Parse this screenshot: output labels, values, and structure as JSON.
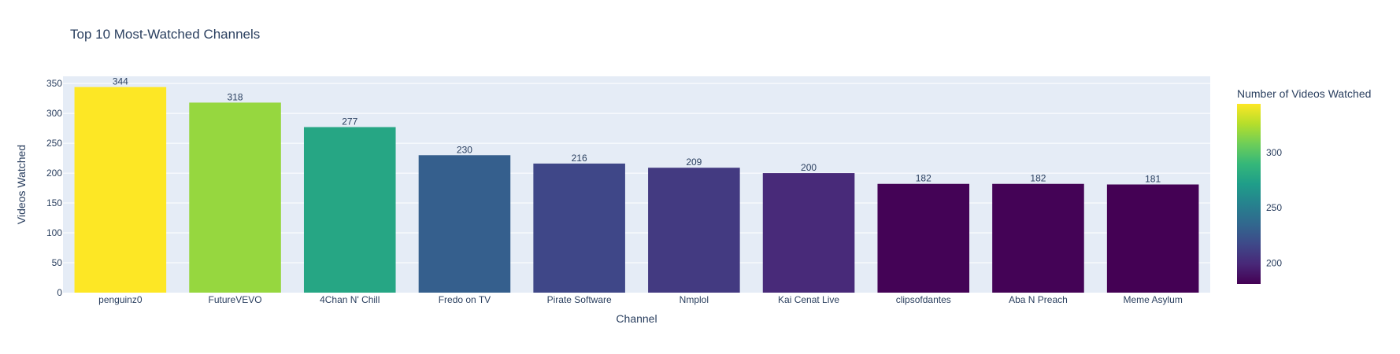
{
  "chart_data": {
    "type": "bar",
    "title": "Top 10 Most-Watched Channels",
    "xlabel": "Channel",
    "ylabel": "Videos Watched",
    "categories": [
      "penguinz0",
      "FutureVEVO",
      "4Chan N' Chill",
      "Fredo on TV",
      "Pirate Software",
      "Nmplol",
      "Kai Cenat Live",
      "clipsofdantes",
      "Aba N Preach",
      "Meme Asylum"
    ],
    "values": [
      344,
      318,
      277,
      230,
      216,
      209,
      200,
      182,
      182,
      181
    ],
    "ylim": [
      0,
      362
    ],
    "yticks": [
      0,
      50,
      100,
      150,
      200,
      250,
      300,
      350
    ],
    "grid": true,
    "colorbar": {
      "title": "Number of Videos Watched",
      "colorscale": "Viridis",
      "range": [
        181,
        344
      ],
      "ticks": [
        200,
        250,
        300
      ]
    },
    "colors": {
      "plot_bg": "#e5ecf6",
      "grid": "#ffffff",
      "text": "#2a3f5f"
    }
  }
}
